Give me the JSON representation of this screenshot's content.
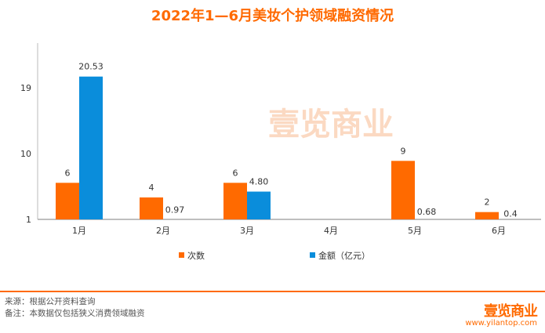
{
  "chart_data": {
    "type": "bar",
    "title": "2022年1—6月美妆个护领域融资情况",
    "categories": [
      "1月",
      "2月",
      "3月",
      "4月",
      "5月",
      "6月"
    ],
    "series": [
      {
        "name": "次数",
        "color": "#ff6a00",
        "values": [
          6,
          4,
          6,
          null,
          9,
          2
        ],
        "labels": [
          "6",
          "4",
          "6",
          "",
          "9",
          "2"
        ]
      },
      {
        "name": "金额（亿元）",
        "color": "#0a8ddb",
        "values": [
          20.53,
          0.97,
          4.8,
          null,
          0.68,
          0.4
        ],
        "labels": [
          "20.53",
          "0.97",
          "4.80",
          "",
          "0.68",
          "0.4"
        ]
      }
    ],
    "yticks": [
      1,
      10,
      19
    ],
    "ylim": [
      1,
      25
    ],
    "legend": "bottom",
    "grid": false
  },
  "watermark": "壹览商业",
  "footer": {
    "source": "来源：根据公开资料查询",
    "note": "备注：本数据仅包括狭义消费领域融资",
    "logo": "壹览商业",
    "url": "www.yilantop.com"
  }
}
